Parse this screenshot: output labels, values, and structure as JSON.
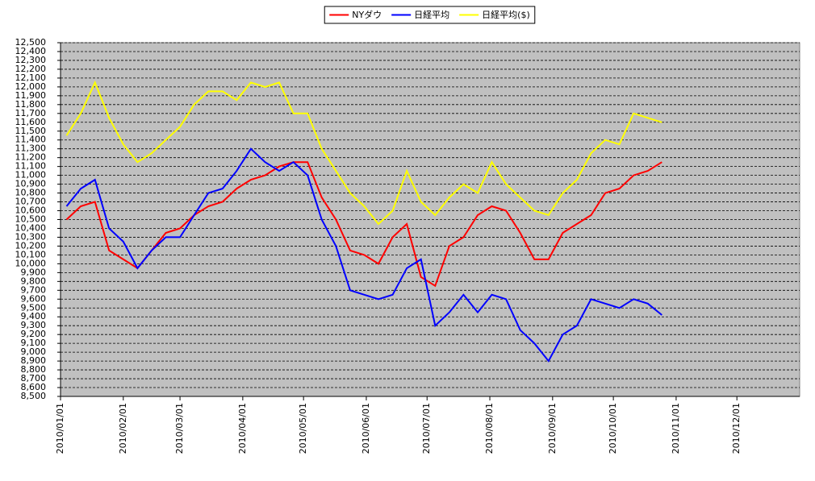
{
  "chart_data": {
    "type": "line",
    "x": [
      "2010/01/04",
      "2010/01/11",
      "2010/01/18",
      "2010/01/25",
      "2010/02/01",
      "2010/02/08",
      "2010/02/15",
      "2010/02/22",
      "2010/03/01",
      "2010/03/08",
      "2010/03/15",
      "2010/03/22",
      "2010/03/29",
      "2010/04/05",
      "2010/04/12",
      "2010/04/19",
      "2010/04/26",
      "2010/05/03",
      "2010/05/10",
      "2010/05/17",
      "2010/05/24",
      "2010/05/31",
      "2010/06/07",
      "2010/06/14",
      "2010/06/21",
      "2010/06/28",
      "2010/07/05",
      "2010/07/12",
      "2010/07/19",
      "2010/07/26",
      "2010/08/02",
      "2010/08/09",
      "2010/08/16",
      "2010/08/23",
      "2010/08/30",
      "2010/09/06",
      "2010/09/13",
      "2010/09/20",
      "2010/09/27",
      "2010/10/04",
      "2010/10/11",
      "2010/10/18",
      "2010/10/25"
    ],
    "series": [
      {
        "name": "NYダウ",
        "color": "#ff0000",
        "values": [
          10500,
          10650,
          10700,
          10150,
          10050,
          9950,
          10150,
          10350,
          10400,
          10550,
          10650,
          10700,
          10850,
          10950,
          11000,
          11100,
          11150,
          11150,
          10750,
          10500,
          10150,
          10100,
          10000,
          10300,
          10450,
          9850,
          9750,
          10200,
          10300,
          10550,
          10650,
          10600,
          10350,
          10050,
          10050,
          10350,
          10450,
          10550,
          10800,
          10850,
          11000,
          11050,
          11150
        ]
      },
      {
        "name": "日経平均",
        "color": "#0000ff",
        "values": [
          10650,
          10850,
          10950,
          10400,
          10250,
          9950,
          10150,
          10300,
          10300,
          10550,
          10800,
          10850,
          11050,
          11300,
          11150,
          11050,
          11150,
          11000,
          10500,
          10200,
          9700,
          9650,
          9600,
          9650,
          9950,
          10050,
          9300,
          9450,
          9650,
          9450,
          9650,
          9600,
          9250,
          9100,
          8900,
          9200,
          9300,
          9600,
          9550,
          9500,
          9600,
          9550,
          9420
        ]
      },
      {
        "name": "日経平均($)",
        "color": "#ffff00",
        "values": [
          11450,
          11700,
          12050,
          11650,
          11350,
          11150,
          11250,
          11400,
          11550,
          11800,
          11950,
          11950,
          11850,
          12050,
          12000,
          12050,
          11700,
          11700,
          11300,
          11050,
          10800,
          10650,
          10450,
          10600,
          11050,
          10700,
          10550,
          10750,
          10900,
          10800,
          11150,
          10900,
          10750,
          10600,
          10550,
          10800,
          10950,
          11250,
          11400,
          11350,
          11700,
          11650,
          11600
        ]
      }
    ],
    "xlim": [
      "2010/01/01",
      "2011/01/01"
    ],
    "xticks": [
      "2010/01/01",
      "2010/02/01",
      "2010/03/01",
      "2010/04/01",
      "2010/05/01",
      "2010/06/01",
      "2010/07/01",
      "2010/08/01",
      "2010/09/01",
      "2010/10/01",
      "2010/11/01",
      "2010/12/01"
    ],
    "ylim": [
      8500,
      12500
    ],
    "yticks": [
      {
        "value": 8500,
        "label": "8,500"
      },
      {
        "value": 8600,
        "label": "8,600"
      },
      {
        "value": 8700,
        "label": "8,700"
      },
      {
        "value": 8800,
        "label": "8,800"
      },
      {
        "value": 8900,
        "label": "8,900"
      },
      {
        "value": 9000,
        "label": "9,000"
      },
      {
        "value": 9100,
        "label": "9,100"
      },
      {
        "value": 9200,
        "label": "9,200"
      },
      {
        "value": 9300,
        "label": "9,300"
      },
      {
        "value": 9400,
        "label": "9,400"
      },
      {
        "value": 9500,
        "label": "9,500"
      },
      {
        "value": 9600,
        "label": "9,600"
      },
      {
        "value": 9700,
        "label": "9,700"
      },
      {
        "value": 9800,
        "label": "9,800"
      },
      {
        "value": 9900,
        "label": "9,900"
      },
      {
        "value": 10000,
        "label": "10,000"
      },
      {
        "value": 10100,
        "label": "10,100"
      },
      {
        "value": 10200,
        "label": "10,200"
      },
      {
        "value": 10300,
        "label": "10,300"
      },
      {
        "value": 10400,
        "label": "10,400"
      },
      {
        "value": 10500,
        "label": "10,500"
      },
      {
        "value": 10600,
        "label": "10,600"
      },
      {
        "value": 10700,
        "label": "10,700"
      },
      {
        "value": 10800,
        "label": "10,800"
      },
      {
        "value": 10900,
        "label": "10,900"
      },
      {
        "value": 11000,
        "label": "11,000"
      },
      {
        "value": 11100,
        "label": "11,100"
      },
      {
        "value": 11200,
        "label": "11,200"
      },
      {
        "value": 11300,
        "label": "11,300"
      },
      {
        "value": 11400,
        "label": "11,400"
      },
      {
        "value": 11500,
        "label": "11,500"
      },
      {
        "value": 11600,
        "label": "11,600"
      },
      {
        "value": 11700,
        "label": "11,700"
      },
      {
        "value": 11800,
        "label": "11,800"
      },
      {
        "value": 11900,
        "label": "11,900"
      },
      {
        "value": 12000,
        "label": "12,000"
      },
      {
        "value": 12100,
        "label": "12,100"
      },
      {
        "value": 12200,
        "label": "12,200"
      },
      {
        "value": 12300,
        "label": "12,300"
      },
      {
        "value": 12400,
        "label": "12,400"
      },
      {
        "value": 12500,
        "label": "12,500"
      }
    ],
    "grid": true,
    "legend": "top"
  }
}
